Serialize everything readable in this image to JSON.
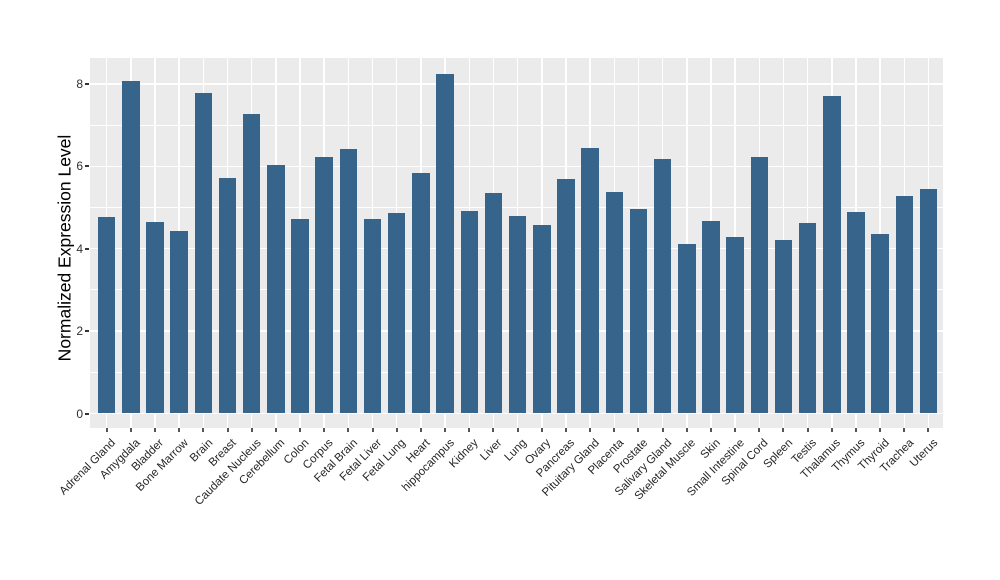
{
  "chart_data": {
    "type": "bar",
    "title": "",
    "xlabel": "",
    "ylabel": "Normalized Expression Level",
    "legend_position": "none",
    "grid": "white major gridlines at even values, minor at odd values, vertical gridline per category",
    "ylim": [
      -0.35,
      8.65
    ],
    "yticks": [
      0,
      2,
      4,
      6,
      8
    ],
    "ytick_labels": [
      "0",
      "2",
      "4",
      "6",
      "8"
    ],
    "minor_yticks": [
      1,
      3,
      5,
      7
    ],
    "categories": [
      "Adrenal Gland",
      "Amygdala",
      "Bladder",
      "Bone Marrow",
      "Brain",
      "Breast",
      "Caudate Nucleus",
      "Cerebellum",
      "Colon",
      "Corpus",
      "Fetal Brain",
      "Fetal Liver",
      "Fetal Lung",
      "Heart",
      "hippocampus",
      "Kidney",
      "Liver",
      "Lung",
      "Ovary",
      "Pancreas",
      "Pituitary Gland",
      "Placenta",
      "Prostate",
      "Salivary Gland",
      "Skeletal Muscle",
      "Skin",
      "Small Intestine",
      "Spinal Cord",
      "Spleen",
      "Testis",
      "Thalamus",
      "Thymus",
      "Thyroid",
      "Trachea",
      "Uterus"
    ],
    "values": [
      4.78,
      8.06,
      4.64,
      4.43,
      7.78,
      5.72,
      7.28,
      6.03,
      4.73,
      6.23,
      6.41,
      4.71,
      4.87,
      5.83,
      8.25,
      4.92,
      5.34,
      4.8,
      4.58,
      5.69,
      6.45,
      5.37,
      4.96,
      6.17,
      4.11,
      4.67,
      4.28,
      6.23,
      4.2,
      4.62,
      7.7,
      4.88,
      4.35,
      5.28,
      5.46
    ],
    "colors": {
      "bar_fill": "#36648B",
      "panel_background": "#EBEBEB",
      "gridline": "#FFFFFF",
      "tick_label_text": "#303030",
      "x_label_text": "#262626",
      "axis_title_text": "#000000",
      "figure_background": "#FFFFFF"
    }
  }
}
